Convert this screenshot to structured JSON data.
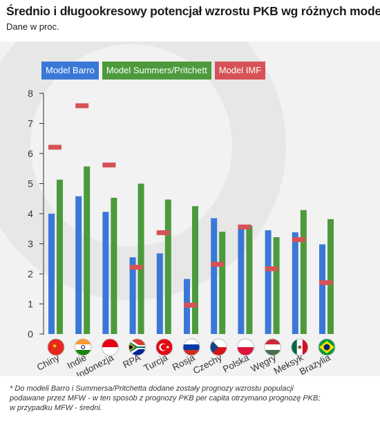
{
  "header": {
    "title": "Średnio i długookresowy potencjał wzrostu PKB wg różnych modeli*",
    "subtitle": "Dane w proc."
  },
  "legend": [
    {
      "label": "Model Barro",
      "color": "#3a78d8"
    },
    {
      "label": "Model Summers/Pritchett",
      "color": "#4c9a3c"
    },
    {
      "label": "Model IMF",
      "color": "#d65256"
    }
  ],
  "chart_data": {
    "type": "bar",
    "categories": [
      "Chiny",
      "Indie",
      "Indonezja",
      "RPA",
      "Turcja",
      "Rosja",
      "Czechy",
      "Polska",
      "Węgry",
      "Meksyk",
      "Brazylia"
    ],
    "series": [
      {
        "name": "Model Barro",
        "color": "#3a78d8",
        "values": [
          4.0,
          4.58,
          4.06,
          2.55,
          2.68,
          1.83,
          3.85,
          3.5,
          3.45,
          3.38,
          2.98
        ]
      },
      {
        "name": "Model Summers/Pritchett",
        "color": "#4c9a3c",
        "values": [
          5.13,
          5.57,
          4.53,
          5.0,
          4.47,
          4.25,
          3.4,
          3.6,
          3.22,
          4.12,
          3.82
        ]
      },
      {
        "name": "Model IMF",
        "color": "#d65256",
        "marker": "dash",
        "values": [
          6.22,
          7.6,
          5.63,
          2.23,
          3.38,
          0.97,
          2.33,
          3.57,
          2.18,
          3.15,
          1.72
        ]
      }
    ],
    "ylim": [
      0,
      8
    ],
    "yticks": [
      0,
      1,
      2,
      3,
      4,
      5,
      6,
      7,
      8
    ],
    "grid": false,
    "legend_position": "top-left"
  },
  "footnote": {
    "line1": "* Do modeli Barro i Summersa/Pritchetta dodane zostały prognozy wzrostu populacji",
    "line2": "podawane przez MFW - w ten sposób z prognozy PKB per capita otrzymano prognozę PKB;",
    "line3": "w  przypadku MFW - średni."
  }
}
